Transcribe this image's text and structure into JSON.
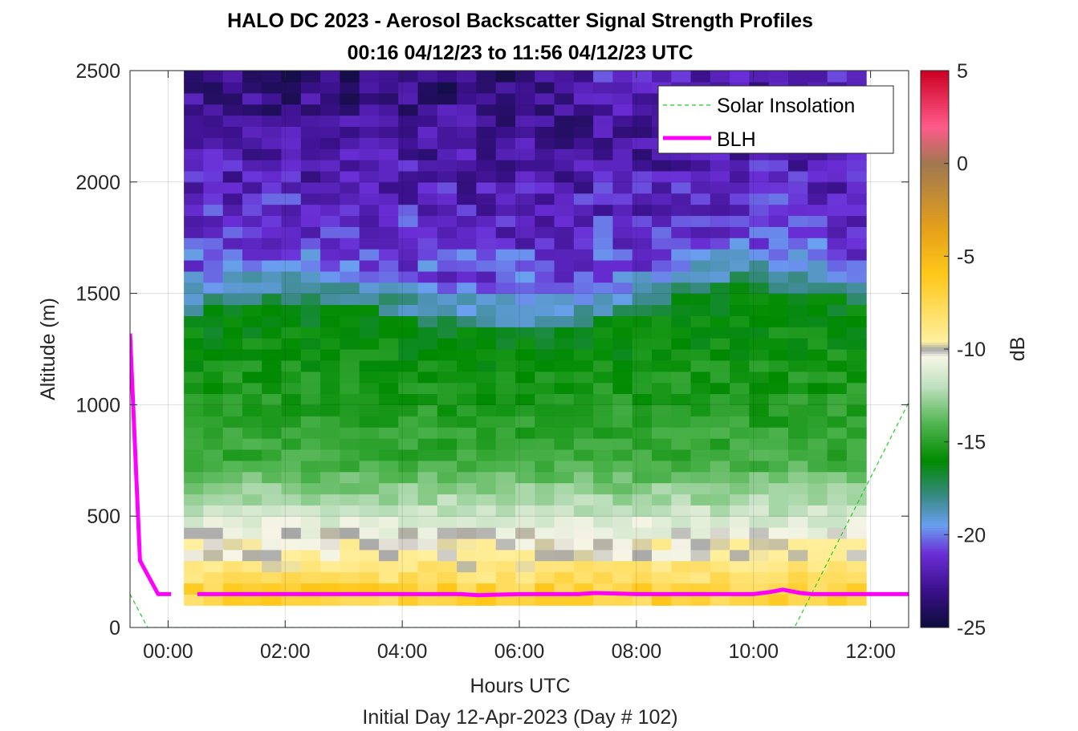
{
  "chart_data": {
    "type": "heatmap",
    "title": "HALO DC 2023 - Aerosol Backscatter Signal Strength Profiles",
    "subtitle": "00:16 04/12/23 to 11:56 04/12/23  UTC",
    "xlabel": "Hours UTC",
    "xlabel2": "Initial Day 12-Apr-2023 (Day # 102)",
    "ylabel": "Altitude (m)",
    "colorbar_label": "dB",
    "xlim": [
      -0.65,
      12.65
    ],
    "ylim": [
      0,
      2500
    ],
    "clim": [
      -25,
      5
    ],
    "x_ticks": [
      0,
      2,
      4,
      6,
      8,
      10,
      12
    ],
    "x_tick_labels": [
      "00:00",
      "02:00",
      "04:00",
      "06:00",
      "08:00",
      "10:00",
      "12:00"
    ],
    "y_ticks": [
      0,
      500,
      1000,
      1500,
      2000,
      2500
    ],
    "y_tick_labels": [
      "0",
      "500",
      "1000",
      "1500",
      "2000",
      "2500"
    ],
    "colorbar_ticks": [
      5,
      0,
      -5,
      -10,
      -15,
      -20,
      -25
    ],
    "colorbar_tick_labels": [
      "5",
      "0",
      "-5",
      "-10",
      "-15",
      "-20",
      "-25"
    ],
    "grid": true,
    "legend_position": "top-right",
    "heatmap": {
      "time_start": 0.27,
      "time_end": 11.93,
      "time_step": 0.333,
      "alt_start": 100,
      "alt_end": 2500,
      "alt_step": 50
    },
    "series": [
      {
        "name": "Solar Insolation",
        "style": "dashed",
        "color": "#22cc22",
        "x": [
          -0.65,
          -0.35,
          10.7,
          12.65
        ],
        "y": [
          150,
          0,
          0,
          1010
        ]
      },
      {
        "name": "BLH",
        "style": "solid",
        "color": "#ff00ff",
        "segments": [
          {
            "x": [
              -0.65,
              -0.48,
              -0.17,
              0.05
            ],
            "y": [
              1320,
              300,
              150,
              150
            ]
          },
          {
            "x": [
              0.5,
              2.0,
              4.0,
              5.0,
              5.3,
              6.0,
              7.0,
              7.3,
              8.0,
              9.0,
              10.0,
              10.3,
              10.5,
              10.8,
              11.0,
              12.0,
              12.65
            ],
            "y": [
              150,
              150,
              150,
              150,
              145,
              150,
              150,
              155,
              150,
              150,
              150,
              160,
              170,
              155,
              150,
              150,
              150
            ]
          }
        ]
      }
    ]
  },
  "colorbar_colors": {
    "stops": [
      "#0d0d3a",
      "#3a108a",
      "#6a2ed6",
      "#6aa0f0",
      "#3b8a8a",
      "#008a00",
      "#52b552",
      "#bfe0bf",
      "#f7f5e6",
      "#a6a6a6",
      "#fff0a0",
      "#ffc81a",
      "#e5a01a",
      "#a07850",
      "#ff5a8a",
      "#cc0022"
    ],
    "positions": [
      -25,
      -23,
      -21,
      -19.5,
      -18,
      -16,
      -14,
      -12,
      -10.4,
      -10,
      -9.6,
      -6,
      -3.5,
      0,
      2,
      5
    ]
  }
}
